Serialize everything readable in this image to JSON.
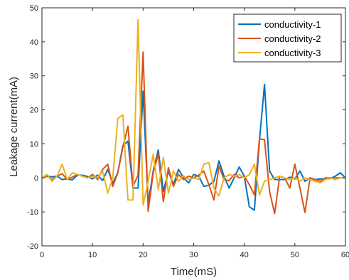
{
  "chart_data": {
    "type": "line",
    "title": "",
    "xlabel": "Time(mS)",
    "ylabel": "Leakage current(mA)",
    "xlim": [
      0,
      60
    ],
    "ylim": [
      -20,
      50
    ],
    "xticks": [
      0,
      10,
      20,
      30,
      40,
      50,
      60
    ],
    "yticks": [
      -20,
      -10,
      0,
      10,
      20,
      30,
      40,
      50
    ],
    "grid": false,
    "legend_position": "top-right",
    "x": [
      0,
      1,
      2,
      3,
      4,
      5,
      6,
      7,
      8,
      9,
      10,
      11,
      12,
      13,
      14,
      15,
      16,
      17,
      18,
      19,
      20,
      21,
      22,
      23,
      24,
      25,
      26,
      27,
      28,
      29,
      30,
      31,
      32,
      33,
      34,
      35,
      36,
      37,
      38,
      39,
      40,
      41,
      42,
      43,
      44,
      45,
      46,
      47,
      48,
      49,
      50,
      51,
      52,
      53,
      54,
      55,
      56,
      57,
      58,
      59,
      60
    ],
    "series": [
      {
        "name": "conductivity-1",
        "color": "#0072BD",
        "values": [
          0,
          0.5,
          0.3,
          0.5,
          -0.5,
          -0.3,
          -0.6,
          0.8,
          0.8,
          0.4,
          -0.3,
          0.8,
          -0.8,
          2.5,
          -1.5,
          1.5,
          9.5,
          10.8,
          -3,
          -3,
          25.5,
          -7.5,
          2,
          8.2,
          -4,
          2,
          -2,
          2.5,
          0,
          -1.5,
          1,
          0.5,
          -2.5,
          -2.2,
          -1,
          5,
          0.5,
          -3,
          0,
          3.2,
          0.5,
          -8.5,
          -9.5,
          11,
          27.5,
          2,
          -0.5,
          -0.5,
          -0.5,
          0.2,
          -0.3,
          2,
          -1,
          0,
          -0.5,
          -0.3,
          -0.3,
          -0.2,
          0.5,
          1.5,
          0
        ]
      },
      {
        "name": "conductivity-2",
        "color": "#D95319",
        "values": [
          0,
          0.5,
          -0.5,
          0.5,
          1.2,
          -0.5,
          0.2,
          1,
          0.5,
          0,
          1,
          -0.5,
          2.5,
          4,
          -2.5,
          1.5,
          9,
          15.2,
          -2.5,
          0.8,
          37,
          -9.8,
          1.5,
          7,
          -7,
          3,
          -2.5,
          1,
          -0.5,
          0.5,
          0,
          0.8,
          2,
          -2,
          -6.5,
          3.5,
          -0.5,
          -0.8,
          1,
          0,
          0.5,
          -2,
          -5,
          11.5,
          11.2,
          -4,
          -10.5,
          0.5,
          0,
          -3,
          4,
          -3,
          -10.2,
          0,
          -0.5,
          -1,
          0,
          0,
          0,
          0,
          0
        ]
      },
      {
        "name": "conductivity-3",
        "color": "#EDB120",
        "values": [
          0,
          1,
          -1,
          0.5,
          4,
          -0.5,
          1.5,
          1,
          0.5,
          0,
          0.5,
          0,
          2,
          -4.5,
          0,
          17.5,
          18.5,
          -6.5,
          -6.5,
          46.5,
          -8,
          -1,
          7,
          -3.5,
          6,
          -4.5,
          2,
          -1,
          0.5,
          -0.5,
          0,
          -0.5,
          4,
          4.5,
          -3,
          -5.3,
          0,
          1,
          0.5,
          1,
          0,
          1,
          4,
          -5,
          -1,
          -0.5,
          0,
          0.5,
          0,
          -0.5,
          0,
          -1,
          0,
          -0.5,
          -1,
          -1.5,
          -0.5,
          0,
          -0.5,
          0,
          0
        ]
      }
    ]
  }
}
